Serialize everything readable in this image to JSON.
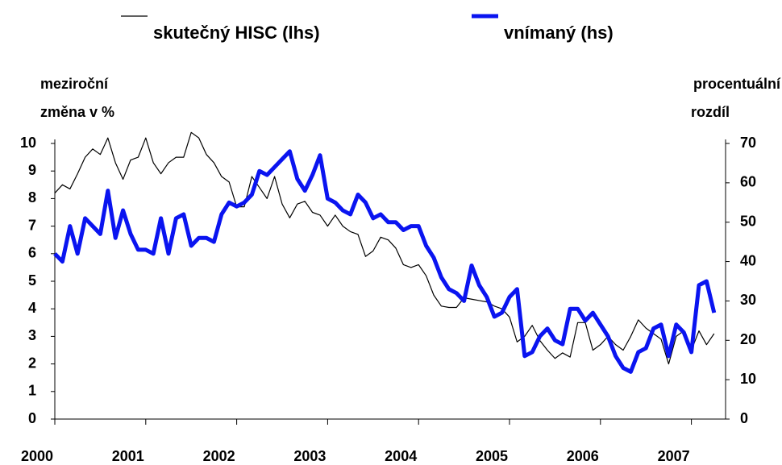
{
  "chart_data": {
    "type": "line",
    "legend": "top",
    "ylabel": [
      "meziroční",
      "změna v %"
    ],
    "y2label": [
      "procentuální",
      "rozdíl"
    ],
    "categories": [
      "2000",
      null,
      null,
      null,
      null,
      null,
      null,
      null,
      null,
      null,
      null,
      null,
      "2001",
      null,
      null,
      null,
      null,
      null,
      null,
      null,
      null,
      null,
      null,
      null,
      "2002",
      null,
      null,
      null,
      null,
      null,
      null,
      null,
      null,
      null,
      null,
      null,
      "2003",
      null,
      null,
      null,
      null,
      null,
      null,
      null,
      null,
      null,
      null,
      null,
      "2004",
      null,
      null,
      null,
      null,
      null,
      null,
      null,
      null,
      null,
      null,
      null,
      "2005",
      null,
      null,
      null,
      null,
      null,
      null,
      null,
      null,
      null,
      null,
      null,
      "2006",
      null,
      null,
      null,
      null,
      null,
      null,
      null,
      null,
      null,
      null,
      null,
      "2007",
      null,
      null,
      null
    ],
    "ylim": [
      0,
      10
    ],
    "yticks": [
      0,
      1,
      2,
      3,
      4,
      5,
      6,
      7,
      8,
      9,
      10
    ],
    "y2lim": [
      0,
      70
    ],
    "y2ticks": [
      0,
      10,
      20,
      30,
      40,
      50,
      60,
      70
    ],
    "series": [
      {
        "name": "skutečný HISC (lhs)",
        "color": "#000000",
        "width": 1.2,
        "values": [
          8.2,
          8.5,
          8.35,
          8.9,
          9.5,
          9.8,
          9.6,
          10.2,
          9.3,
          8.7,
          9.4,
          9.5,
          10.2,
          9.3,
          8.9,
          9.3,
          9.5,
          9.5,
          10.4,
          10.2,
          9.6,
          9.3,
          8.8,
          8.6,
          7.7,
          7.7,
          8.8,
          8.4,
          8.0,
          8.8,
          7.8,
          7.3,
          7.8,
          7.9,
          7.5,
          7.4,
          7.0,
          7.4,
          7.0,
          6.8,
          6.7,
          5.9,
          6.1,
          6.6,
          6.5,
          6.2,
          5.6,
          5.5,
          5.6,
          5.2,
          4.5,
          4.1,
          4.05,
          4.05,
          4.4,
          4.35,
          4.3,
          4.25,
          4.1,
          4.0,
          3.7,
          2.8,
          3.0,
          3.4,
          2.85,
          2.5,
          2.2,
          2.4,
          2.25,
          3.5,
          3.5,
          2.5,
          2.7,
          3.0,
          2.7,
          2.5,
          3.0,
          3.6,
          3.3,
          3.1,
          2.9,
          2.0,
          3.0,
          3.2,
          2.5,
          3.2,
          2.7,
          3.1
        ]
      },
      {
        "name": "vnímaný (hs)",
        "color": "#0a14f0",
        "width": 5,
        "axis": "y2",
        "values": [
          42,
          40,
          49,
          42,
          51,
          49,
          47,
          58,
          46,
          53,
          47,
          43,
          43,
          42,
          51,
          42,
          51,
          52,
          44,
          46,
          46,
          45,
          52,
          55,
          54,
          55,
          57,
          63,
          62,
          64,
          66,
          68,
          61,
          58,
          62,
          67,
          56,
          55,
          53,
          52,
          57,
          55,
          51,
          52,
          50,
          50,
          48,
          49,
          49,
          44,
          41,
          36,
          33,
          32,
          30,
          39,
          34,
          31,
          26,
          27,
          31,
          33,
          16,
          17,
          21,
          23,
          20,
          19,
          28,
          28,
          25,
          27,
          24,
          21,
          16,
          13,
          12,
          17,
          18,
          23,
          24,
          16,
          24,
          22,
          17,
          34,
          35,
          27
        ]
      }
    ]
  }
}
